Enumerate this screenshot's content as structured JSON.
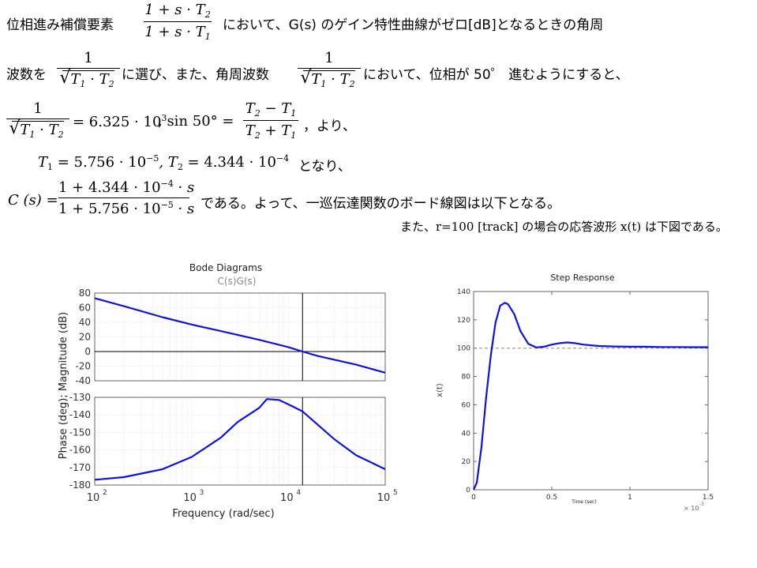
{
  "text": {
    "l1a": "位相進み補償要素",
    "l1b": "において、G(s) のゲイン特性曲線がゼロ[dB]となるときの角周",
    "l2a": "波数を",
    "l2b": "に選び、また、角周波数",
    "l2c": "において、位相が  50゜ 進むようにすると、",
    "l3a": "= 6.325 · 10",
    "l3a_exp": "3",
    "l3b": ",  sin 50° =",
    "l3c": "，より、",
    "l4a": "T",
    "l4a_sub": "1",
    "l4b": " = 5.756 · 10",
    "l4b_exp": "−5",
    "l4c": ", T",
    "l4c_sub": "2",
    "l4d": " = 4.344 · 10",
    "l4d_exp": "−4",
    "l4e": "となり、",
    "l5a": "C (s) =",
    "l5b": "である。よって、一巡伝達関数のボード線図は以下となる。",
    "l6": "また、r=100 [track]  の場合の応答波形 x(t)  は下図である。",
    "frac1_num": "1 + s · T",
    "frac1_num_sub": "2",
    "frac1_den": "1 + s · T",
    "frac1_den_sub": "1",
    "one": "1",
    "sqrt_t1": "T",
    "sqrt_t1_sub": "1",
    "sqrt_dot": " · ",
    "sqrt_t2": "T",
    "sqrt_t2_sub": "2",
    "sin_num_a": "T",
    "sin_num_a_sub": "2",
    "sin_num_op": " − ",
    "sin_num_b": "T",
    "sin_num_b_sub": "1",
    "sin_den_a": "T",
    "sin_den_a_sub": "2",
    "sin_den_op": " + ",
    "sin_den_b": "T",
    "sin_den_b_sub": "1",
    "c_num": "1 + 4.344 · 10",
    "c_num_exp": "−4",
    "c_num_tail": " · s",
    "c_den": "1 + 5.756 · 10",
    "c_den_exp": "−5",
    "c_den_tail": " · s"
  },
  "colors": {
    "curve": "#1111dd",
    "axis": "#000000",
    "ref_line": "#888888",
    "bg": "#ffffff"
  },
  "chart_data": [
    {
      "type": "line",
      "title": "Bode Diagrams",
      "subtitle": "C(s)G(s)",
      "xlabel": "Frequency (rad/sec)",
      "ylabel": "Phase (deg); Magnitude (dB)",
      "x_scale": "log",
      "xlim": [
        100,
        100000
      ],
      "x_ticks": [
        {
          "base": "10",
          "exp": "2",
          "value": 100
        },
        {
          "base": "10",
          "exp": "3",
          "value": 1000
        },
        {
          "base": "10",
          "exp": "4",
          "value": 10000
        },
        {
          "base": "10",
          "exp": "5",
          "value": 100000
        }
      ],
      "crossover_frequency": 14000,
      "magnitude": {
        "ylim": [
          -40,
          80
        ],
        "y_ticks": [
          "80",
          "60",
          "40",
          "20",
          "0",
          "-20",
          "-40"
        ],
        "x": [
          100,
          200,
          500,
          1000,
          2000,
          5000,
          10000,
          14000,
          20000,
          50000,
          100000
        ],
        "values": [
          73,
          62,
          47,
          37,
          28,
          16,
          6,
          0,
          -6,
          -18,
          -29
        ]
      },
      "phase": {
        "ylim": [
          -180,
          -130
        ],
        "y_ticks": [
          "-130",
          "-140",
          "-150",
          "-160",
          "-170",
          "-180"
        ],
        "x": [
          100,
          200,
          500,
          1000,
          2000,
          3000,
          5000,
          6000,
          8000,
          10000,
          14000,
          20000,
          30000,
          50000,
          100000
        ],
        "values": [
          -177,
          -175.5,
          -171,
          -164,
          -153,
          -144,
          -136,
          -131,
          -131.5,
          -134,
          -138,
          -145.5,
          -154,
          -163,
          -171
        ]
      }
    },
    {
      "type": "line",
      "title": "Step Response",
      "xlabel": "Time (sec)",
      "ylabel": "x(t)",
      "x_exponent_note": "× 10",
      "x_exponent": "-3",
      "xlim": [
        0,
        1.5
      ],
      "ylim": [
        0,
        140
      ],
      "x_ticks": [
        "0",
        "0.5",
        "1",
        "1.5"
      ],
      "y_ticks": [
        "0",
        "20",
        "40",
        "60",
        "80",
        "100",
        "120",
        "140"
      ],
      "reference": 100,
      "x": [
        0,
        0.02,
        0.05,
        0.08,
        0.11,
        0.14,
        0.17,
        0.2,
        0.22,
        0.26,
        0.3,
        0.35,
        0.4,
        0.45,
        0.5,
        0.55,
        0.6,
        0.65,
        0.7,
        0.8,
        0.9,
        1.0,
        1.1,
        1.2,
        1.3,
        1.4,
        1.5
      ],
      "values": [
        0,
        5,
        30,
        65,
        95,
        118,
        130,
        132,
        131,
        124,
        112,
        103,
        100.5,
        101,
        102.5,
        103.5,
        104,
        103.5,
        102.5,
        101.5,
        101.2,
        101,
        101,
        100.8,
        100.8,
        100.7,
        100.7
      ]
    }
  ]
}
